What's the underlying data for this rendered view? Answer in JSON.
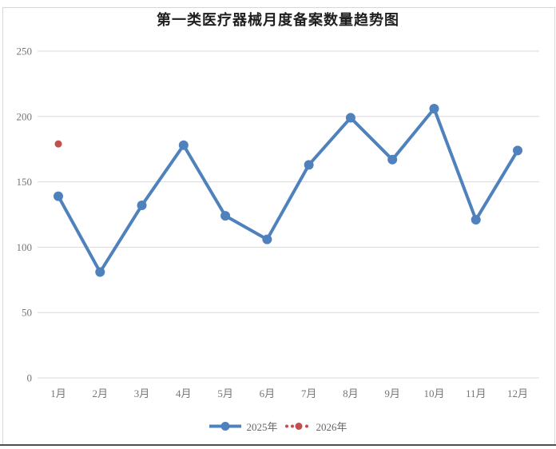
{
  "chart_data": {
    "type": "line",
    "title": "第一类医疗器械月度备案数量趋势图",
    "categories": [
      "1月",
      "2月",
      "3月",
      "4月",
      "5月",
      "6月",
      "7月",
      "8月",
      "9月",
      "10月",
      "11月",
      "12月"
    ],
    "series": [
      {
        "name": "2025年",
        "color": "#4F81BD",
        "line_style": "solid",
        "marker": "circle",
        "values": [
          139,
          81,
          132,
          178,
          124,
          106,
          163,
          199,
          167,
          206,
          121,
          174
        ]
      },
      {
        "name": "2026年",
        "color": "#C0504D",
        "line_style": "dotted",
        "marker": "circle",
        "values": [
          179,
          null,
          null,
          null,
          null,
          null,
          null,
          null,
          null,
          null,
          null,
          null
        ]
      }
    ],
    "xlabel": "",
    "ylabel": "",
    "ylim": [
      0,
      250
    ],
    "ytick_step": 50,
    "grid": "horizontal",
    "legend_position": "bottom",
    "colors": {
      "gridline": "#d9d9d9",
      "frame_border": "#d7d7d7",
      "bottom_edge": "#4f4f4f",
      "tick_label": "#767676",
      "title": "#1f1f1f",
      "legend_text": "#666666"
    }
  }
}
